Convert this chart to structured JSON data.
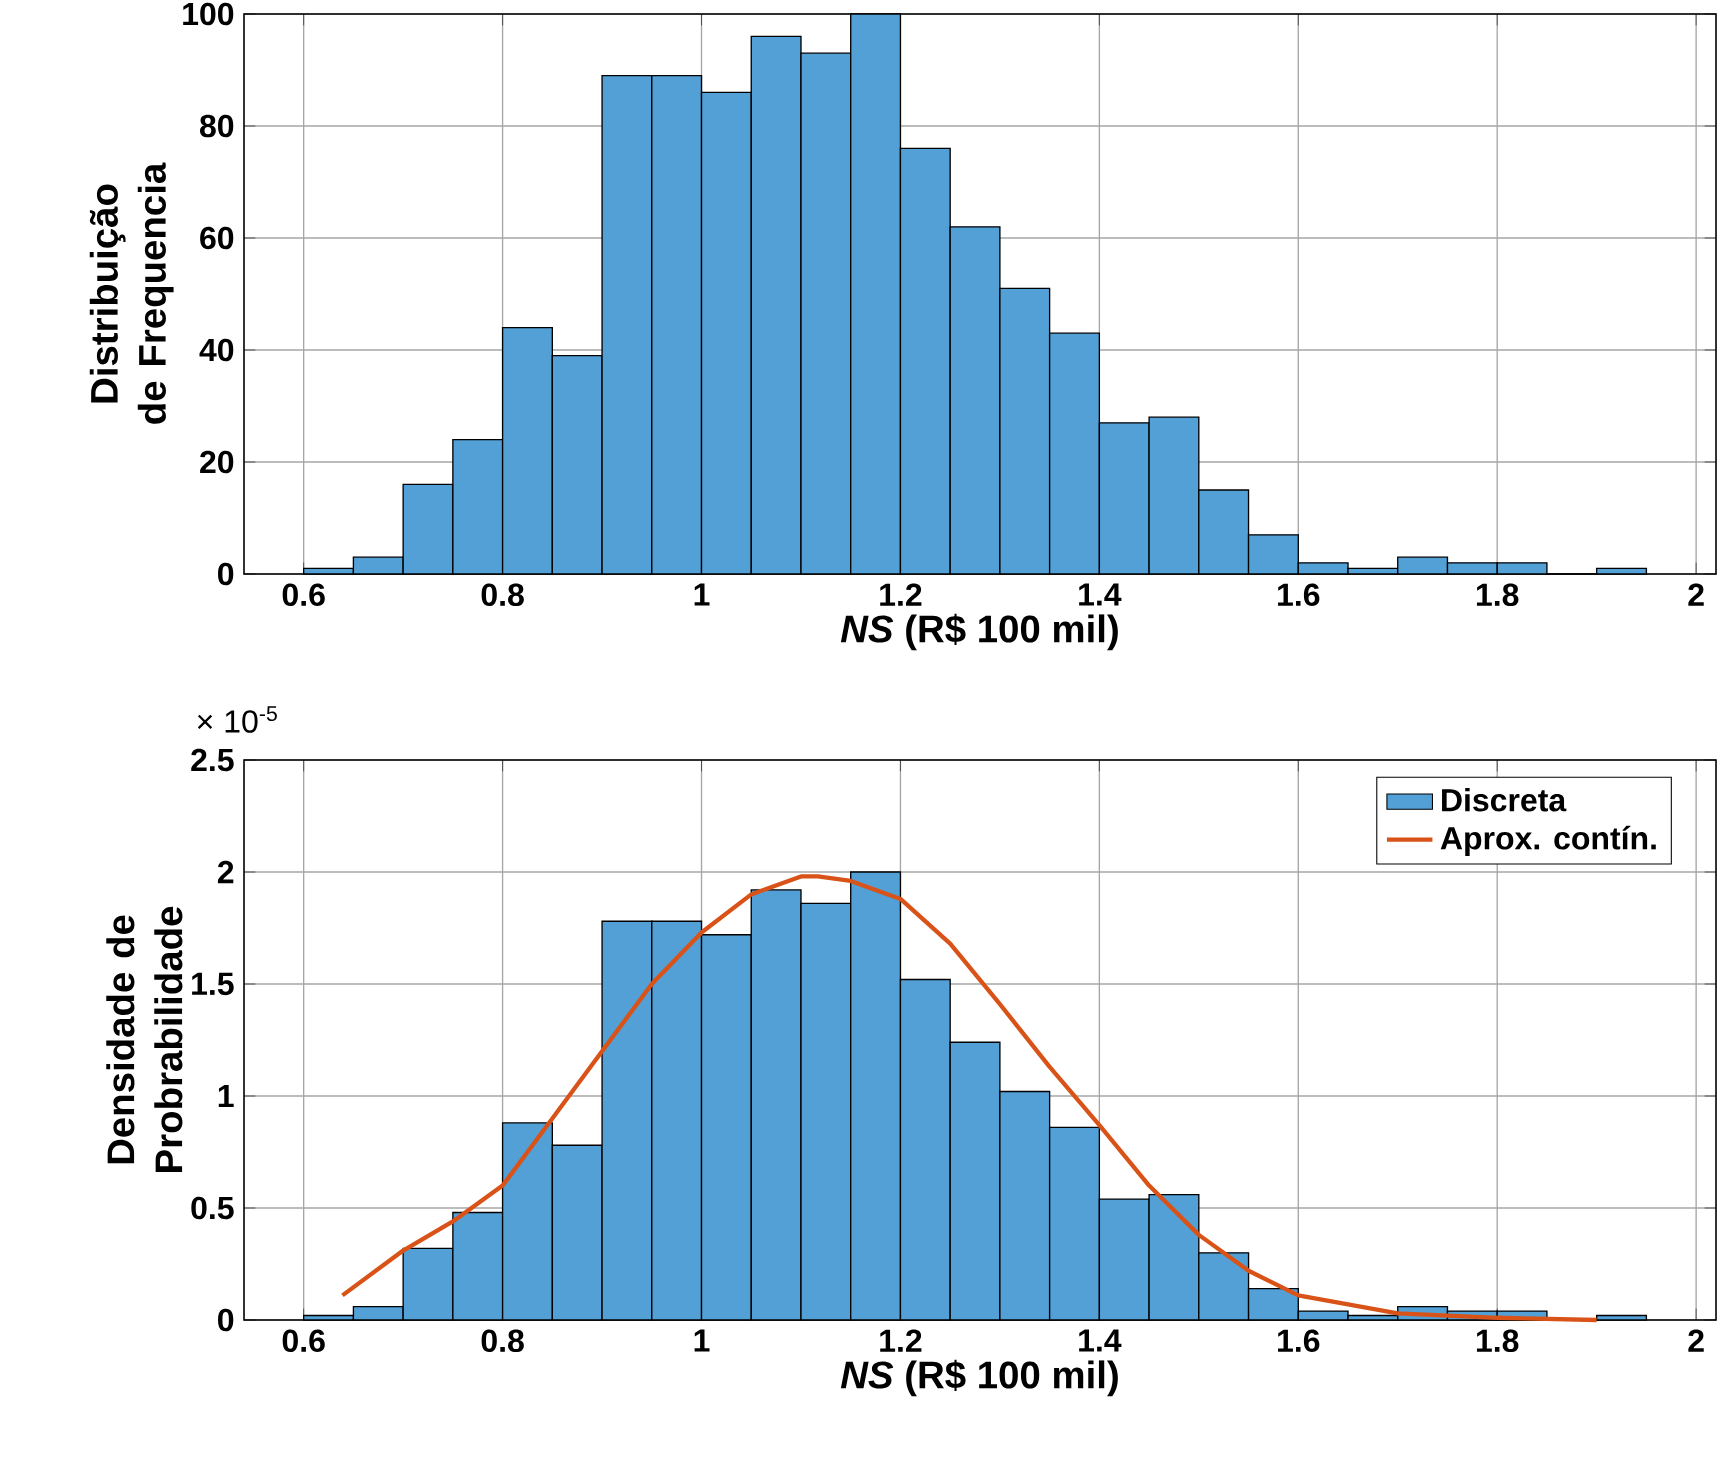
{
  "chart_data": [
    {
      "type": "histogram",
      "xlabel": "*NS* (R$ 100 mil)",
      "ylabel": "Distribuição de Frequencia",
      "color": "#53a0d6",
      "bins": [
        0.6,
        0.65,
        0.7,
        0.75,
        0.8,
        0.85,
        0.9,
        0.95,
        1.0,
        1.05,
        1.1,
        1.15,
        1.2,
        1.25,
        1.3,
        1.35,
        1.4,
        1.45,
        1.5,
        1.55,
        1.6,
        1.65,
        1.7,
        1.75,
        1.8,
        1.85,
        1.9,
        1.95
      ],
      "values": [
        1,
        3,
        16,
        24,
        44,
        39,
        89,
        89,
        86,
        96,
        93,
        100,
        76,
        62,
        51,
        43,
        27,
        28,
        15,
        7,
        2,
        1,
        3,
        2,
        2,
        0,
        1
      ],
      "xlim": [
        0.54,
        2.02
      ],
      "ylim": [
        0,
        100
      ],
      "xticks": [
        0.6,
        0.8,
        1,
        1.2,
        1.4,
        1.6,
        1.8,
        2
      ],
      "yticks": [
        0,
        20,
        40,
        60,
        80,
        100
      ],
      "grid": true
    },
    {
      "type": "histogram",
      "xlabel": "*NS* (R$ 100 mil)",
      "ylabel": "Densidade de Probrabilidade",
      "annotations": [
        "× 10$^{-5}$"
      ],
      "legend": "top right",
      "series": [
        {
          "name": "Discreta",
          "type": "histogram",
          "color": "#53a0d6",
          "bins": [
            0.6,
            0.65,
            0.7,
            0.75,
            0.8,
            0.85,
            0.9,
            0.95,
            1.0,
            1.05,
            1.1,
            1.15,
            1.2,
            1.25,
            1.3,
            1.35,
            1.4,
            1.45,
            1.5,
            1.55,
            1.6,
            1.65,
            1.7,
            1.75,
            1.8,
            1.85,
            1.9,
            1.95
          ],
          "values": [
            0.02,
            0.06,
            0.32,
            0.48,
            0.88,
            0.78,
            1.78,
            1.78,
            1.72,
            1.92,
            1.86,
            2.0,
            1.52,
            1.24,
            1.02,
            0.86,
            0.54,
            0.56,
            0.3,
            0.14,
            0.04,
            0.02,
            0.06,
            0.04,
            0.04,
            0,
            0.02
          ]
        },
        {
          "name": "Aprox. contín.",
          "type": "line",
          "color": "#d95319",
          "x": [
            0.639,
            0.7,
            0.75,
            0.8,
            0.85,
            0.9,
            0.95,
            1.0,
            1.05,
            1.1,
            1.117,
            1.15,
            1.2,
            1.25,
            1.3,
            1.35,
            1.4,
            1.45,
            1.5,
            1.55,
            1.6,
            1.7,
            1.8,
            1.9
          ],
          "values": [
            0.11,
            0.31,
            0.44,
            0.6,
            0.9,
            1.2,
            1.5,
            1.73,
            1.9,
            1.98,
            1.98,
            1.96,
            1.88,
            1.68,
            1.41,
            1.13,
            0.87,
            0.6,
            0.38,
            0.22,
            0.11,
            0.03,
            0.01,
            0
          ]
        }
      ],
      "xlim": [
        0.54,
        2.02
      ],
      "ylim": [
        0,
        2.5
      ],
      "xticks": [
        0.6,
        0.8,
        1,
        1.2,
        1.4,
        1.6,
        1.8,
        2
      ],
      "yticks": [
        0,
        0.5,
        1,
        1.5,
        2,
        2.5
      ],
      "grid": true
    }
  ]
}
